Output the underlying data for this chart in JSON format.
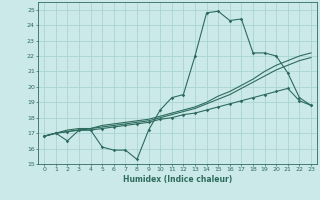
{
  "xlabel": "Humidex (Indice chaleur)",
  "background_color": "#cce9e9",
  "grid_color": "#aad4d4",
  "line_color": "#2d6b5e",
  "xlim": [
    -0.5,
    23.5
  ],
  "ylim": [
    15,
    25.5
  ],
  "yticks": [
    15,
    16,
    17,
    18,
    19,
    20,
    21,
    22,
    23,
    24,
    25
  ],
  "xticks": [
    0,
    1,
    2,
    3,
    4,
    5,
    6,
    7,
    8,
    9,
    10,
    11,
    12,
    13,
    14,
    15,
    16,
    17,
    18,
    19,
    20,
    21,
    22,
    23
  ],
  "series1": [
    16.8,
    17.0,
    16.5,
    17.2,
    17.2,
    16.1,
    15.9,
    15.9,
    15.3,
    17.2,
    18.5,
    19.3,
    19.5,
    22.0,
    24.8,
    24.9,
    24.3,
    24.4,
    22.2,
    22.2,
    22.0,
    20.9,
    19.3,
    18.8
  ],
  "series2": [
    16.8,
    17.0,
    17.2,
    17.3,
    17.3,
    17.5,
    17.6,
    17.7,
    17.8,
    17.9,
    18.1,
    18.3,
    18.5,
    18.7,
    19.0,
    19.4,
    19.7,
    20.1,
    20.5,
    21.0,
    21.4,
    21.7,
    22.0,
    22.2
  ],
  "series3": [
    16.8,
    17.0,
    17.1,
    17.2,
    17.3,
    17.4,
    17.5,
    17.6,
    17.7,
    17.8,
    18.0,
    18.2,
    18.4,
    18.6,
    18.9,
    19.2,
    19.5,
    19.9,
    20.3,
    20.7,
    21.1,
    21.4,
    21.7,
    21.9
  ],
  "series4": [
    16.8,
    17.0,
    17.1,
    17.2,
    17.2,
    17.3,
    17.4,
    17.5,
    17.6,
    17.7,
    17.9,
    18.0,
    18.2,
    18.3,
    18.5,
    18.7,
    18.9,
    19.1,
    19.3,
    19.5,
    19.7,
    19.9,
    19.1,
    18.8
  ]
}
